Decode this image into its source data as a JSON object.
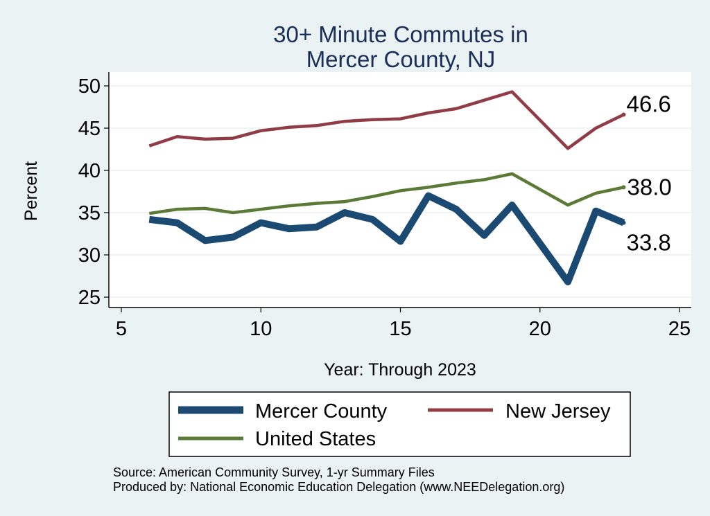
{
  "chart_data": {
    "type": "line",
    "title": [
      "30+ Minute Commutes in",
      "Mercer County, NJ"
    ],
    "xlabel": "Year: Through 2023",
    "ylabel": "Percent",
    "xlim": [
      5,
      25
    ],
    "ylim": [
      25,
      50
    ],
    "xticks": [
      5,
      10,
      15,
      20,
      25
    ],
    "yticks": [
      25,
      30,
      35,
      40,
      45,
      50
    ],
    "grid": true,
    "legend_position": "bottom",
    "series": [
      {
        "name": "Mercer County",
        "color": "#1a4a72",
        "x": [
          6,
          7,
          8,
          9,
          10,
          11,
          12,
          13,
          14,
          15,
          16,
          17,
          18,
          19,
          21,
          22,
          23
        ],
        "values": [
          34.2,
          33.8,
          31.7,
          32.1,
          33.8,
          33.1,
          33.3,
          35.0,
          34.2,
          31.6,
          37.0,
          35.4,
          32.3,
          35.9,
          26.8,
          35.2,
          33.8
        ],
        "end_label": "33.8"
      },
      {
        "name": "New Jersey",
        "color": "#903c46",
        "x": [
          6,
          7,
          8,
          9,
          10,
          11,
          12,
          13,
          14,
          15,
          16,
          17,
          18,
          19,
          21,
          22,
          23
        ],
        "values": [
          42.9,
          44.0,
          43.7,
          43.8,
          44.7,
          45.1,
          45.3,
          45.8,
          46.0,
          46.1,
          46.8,
          47.3,
          48.3,
          49.3,
          42.6,
          45.0,
          46.6
        ],
        "end_label": "46.6"
      },
      {
        "name": "United States",
        "color": "#5a7a36",
        "x": [
          6,
          7,
          8,
          9,
          10,
          11,
          12,
          13,
          14,
          15,
          16,
          17,
          18,
          19,
          21,
          22,
          23
        ],
        "values": [
          34.9,
          35.4,
          35.5,
          35.0,
          35.4,
          35.8,
          36.1,
          36.3,
          36.9,
          37.6,
          38.0,
          38.5,
          38.9,
          39.6,
          35.9,
          37.3,
          38.0
        ],
        "end_label": "38.0"
      }
    ],
    "notes": [
      "Source: American Community Survey, 1-yr Summary Files",
      "Produced by: National Economic Education Delegation (www.NEEDelegation.org)"
    ]
  }
}
